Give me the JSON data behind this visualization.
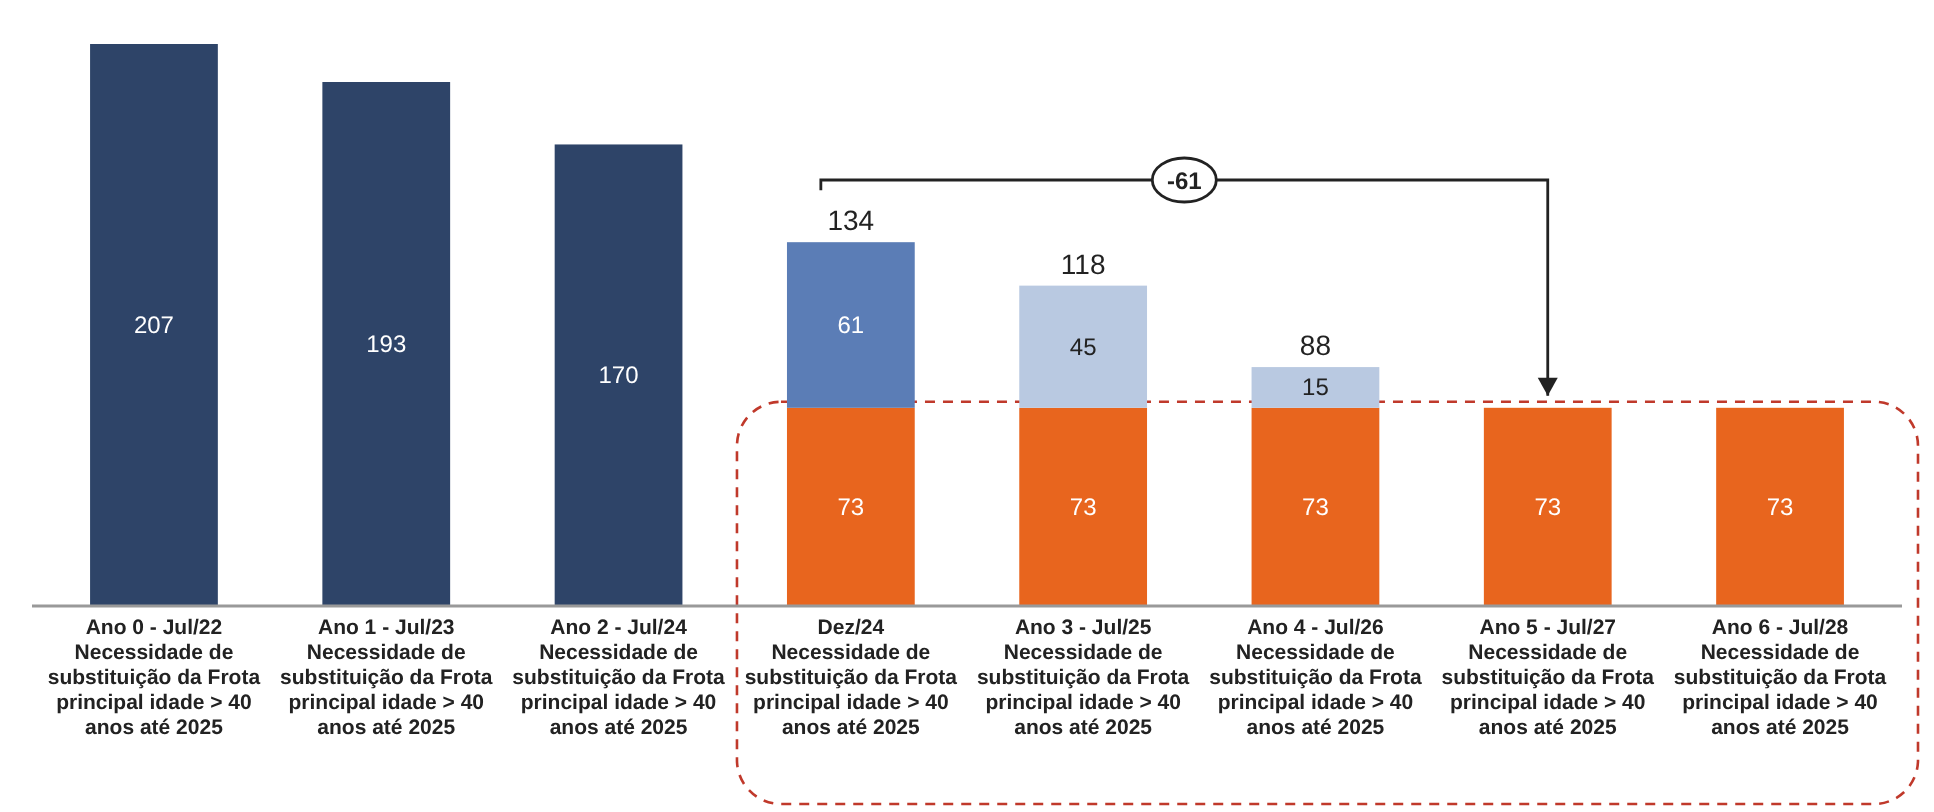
{
  "chart_data": {
    "type": "bar",
    "stacked": true,
    "data_labels": true,
    "categories": [
      "Ano 0 - Jul/22\nNecessidade de\nsubstituição da Frota\nprincipal idade > 40\nanos até 2025",
      "Ano 1 - Jul/23\nNecessidade de\nsubstituição da Frota\nprincipal idade > 40\nanos até 2025",
      "Ano 2 - Jul/24\nNecessidade de\nsubstituição da Frota\nprincipal idade > 40\nanos até 2025",
      "Dez/24\nNecessidade de\nsubstituição da Frota\nprincipal idade > 40\nanos até 2025",
      "Ano 3 - Jul/25\nNecessidade de\nsubstituição da Frota\nprincipal idade > 40\nanos até 2025",
      "Ano 4 - Jul/26\nNecessidade de\nsubstituição da Frota\nprincipal idade > 40\nanos até 2025",
      "Ano 5 - Jul/27\nNecessidade de\nsubstituição da Frota\nprincipal idade > 40\nanos até 2025",
      "Ano 6 - Jul/28\nNecessidade de\nsubstituição da Frota\nprincipal idade > 40\nanos até 2025"
    ],
    "series": [
      {
        "values": [
          207,
          193,
          170,
          73,
          73,
          73,
          73,
          73
        ],
        "colors": [
          "#2e4468",
          "#2e4468",
          "#2e4468",
          "#e8651e",
          "#e8651e",
          "#e8651e",
          "#e8651e",
          "#e8651e"
        ]
      },
      {
        "values": [
          null,
          null,
          null,
          61,
          45,
          15,
          null,
          null
        ],
        "colors": [
          null,
          null,
          null,
          "#5b7db6",
          "#b9c9e1",
          "#b9c9e1",
          null,
          null
        ]
      }
    ],
    "totals": [
      null,
      null,
      null,
      "134",
      "118",
      "88",
      null,
      null
    ],
    "annotations": [
      "-61"
    ]
  }
}
